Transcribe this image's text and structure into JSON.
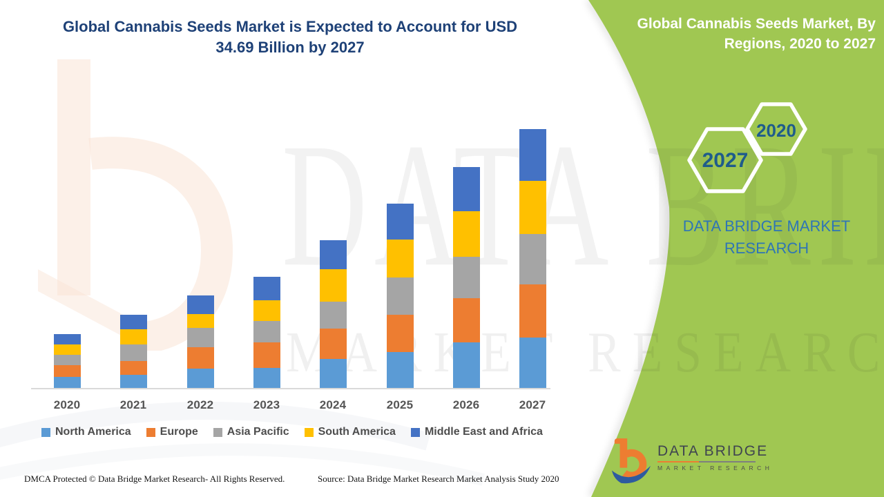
{
  "header": {
    "line1": "Global Cannabis Seeds Market is Expected to Account for USD",
    "line2": "34.69 Billion by 2027"
  },
  "panel": {
    "line1": "Global Cannabis Seeds Market, By",
    "line2": "Regions, 2020 to 2027",
    "hex_front_label": "2027",
    "hex_back_label": "2020",
    "brand_line1": "DATA BRIDGE MARKET",
    "brand_line2": "RESEARCH"
  },
  "logo": {
    "name": "DATA BRIDGE",
    "tagline": "MARKET RESEARCH"
  },
  "watermark": {
    "big": "DATA BRIDGE",
    "sub": "MARKET RESEARCH"
  },
  "footer": {
    "left": "DMCA Protected © Data Bridge Market Research- All Rights Reserved.",
    "right": "Source: Data Bridge Market Research Market Analysis Study 2020"
  },
  "colors": {
    "panel_green": "#A0C752",
    "title_blue": "#1E4177",
    "hex_text_blue": "#1F5C8B",
    "brand_text_blue": "#2E75B6",
    "axis_gray": "#D9D9D9",
    "label_gray": "#555555"
  },
  "chart_data": {
    "type": "bar",
    "stacked": true,
    "title": "Global Cannabis Seeds Market is Expected to Account for USD 34.69 Billion by 2027",
    "unit": "USD Billion",
    "categories": [
      "2020",
      "2021",
      "2022",
      "2023",
      "2024",
      "2025",
      "2026",
      "2027"
    ],
    "series": [
      {
        "name": "North America",
        "color": "#5B9BD5",
        "values": [
          1.48,
          1.76,
          2.59,
          2.68,
          3.89,
          4.81,
          6.11,
          6.75
        ]
      },
      {
        "name": "Europe",
        "color": "#ED7D31",
        "values": [
          1.57,
          1.85,
          2.87,
          3.42,
          4.07,
          5.0,
          5.92,
          7.12
        ]
      },
      {
        "name": "Asia Pacific",
        "color": "#A5A5A5",
        "values": [
          1.39,
          2.22,
          2.59,
          2.87,
          3.61,
          5.0,
          5.55,
          6.75
        ]
      },
      {
        "name": "South America",
        "color": "#FFC000",
        "values": [
          1.39,
          2.04,
          1.85,
          2.78,
          4.35,
          5.09,
          6.11,
          7.12
        ]
      },
      {
        "name": "Middle East and Africa",
        "color": "#4472C4",
        "values": [
          1.39,
          1.94,
          2.5,
          3.15,
          3.89,
          4.81,
          5.92,
          6.95
        ]
      }
    ],
    "totals": [
      7.22,
      9.81,
      12.4,
      14.9,
      19.81,
      24.71,
      29.61,
      34.69
    ],
    "total_2027": 34.69,
    "xlabel": "",
    "ylabel": "",
    "y_axis_visible": false,
    "grid": false,
    "legend_position": "bottom"
  }
}
